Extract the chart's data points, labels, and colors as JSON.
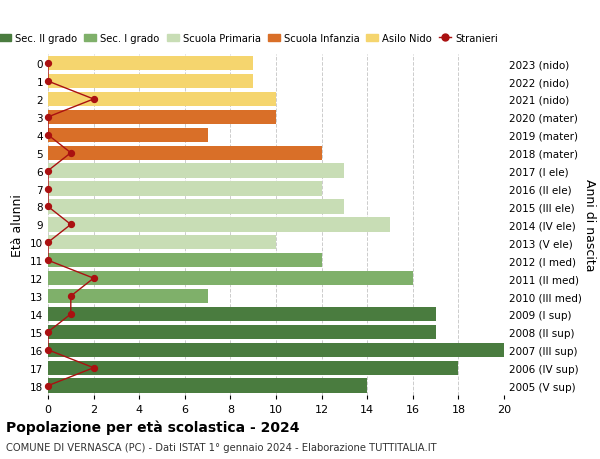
{
  "ages": [
    18,
    17,
    16,
    15,
    14,
    13,
    12,
    11,
    10,
    9,
    8,
    7,
    6,
    5,
    4,
    3,
    2,
    1,
    0
  ],
  "years": [
    "2005 (V sup)",
    "2006 (IV sup)",
    "2007 (III sup)",
    "2008 (II sup)",
    "2009 (I sup)",
    "2010 (III med)",
    "2011 (II med)",
    "2012 (I med)",
    "2013 (V ele)",
    "2014 (IV ele)",
    "2015 (III ele)",
    "2016 (II ele)",
    "2017 (I ele)",
    "2018 (mater)",
    "2019 (mater)",
    "2020 (mater)",
    "2021 (nido)",
    "2022 (nido)",
    "2023 (nido)"
  ],
  "bar_values": [
    14,
    18,
    20,
    17,
    17,
    7,
    16,
    12,
    10,
    15,
    13,
    12,
    13,
    12,
    7,
    10,
    10,
    9,
    9
  ],
  "bar_colors": [
    "#4a7c3f",
    "#4a7c3f",
    "#4a7c3f",
    "#4a7c3f",
    "#4a7c3f",
    "#7fb06a",
    "#7fb06a",
    "#7fb06a",
    "#c8ddb5",
    "#c8ddb5",
    "#c8ddb5",
    "#c8ddb5",
    "#c8ddb5",
    "#d96f28",
    "#d96f28",
    "#d96f28",
    "#f5d56e",
    "#f5d56e",
    "#f5d56e"
  ],
  "stranieri_values": [
    0,
    2,
    0,
    0,
    1,
    1,
    2,
    0,
    0,
    1,
    0,
    0,
    0,
    1,
    0,
    0,
    2,
    0,
    0
  ],
  "stranieri_color": "#aa1111",
  "legend_labels": [
    "Sec. II grado",
    "Sec. I grado",
    "Scuola Primaria",
    "Scuola Infanzia",
    "Asilo Nido",
    "Stranieri"
  ],
  "legend_colors": [
    "#4a7c3f",
    "#7fb06a",
    "#c8ddb5",
    "#d96f28",
    "#f5d56e",
    "#aa1111"
  ],
  "ylabel": "Età alunni",
  "right_ylabel": "Anni di nascita",
  "title": "Popolazione per età scolastica - 2024",
  "subtitle": "COMUNE DI VERNASCA (PC) - Dati ISTAT 1° gennaio 2024 - Elaborazione TUTTITALIA.IT",
  "xlim": [
    0,
    20
  ],
  "xticks": [
    0,
    2,
    4,
    6,
    8,
    10,
    12,
    14,
    16,
    18,
    20
  ],
  "bg_color": "#ffffff",
  "grid_color": "#cccccc"
}
